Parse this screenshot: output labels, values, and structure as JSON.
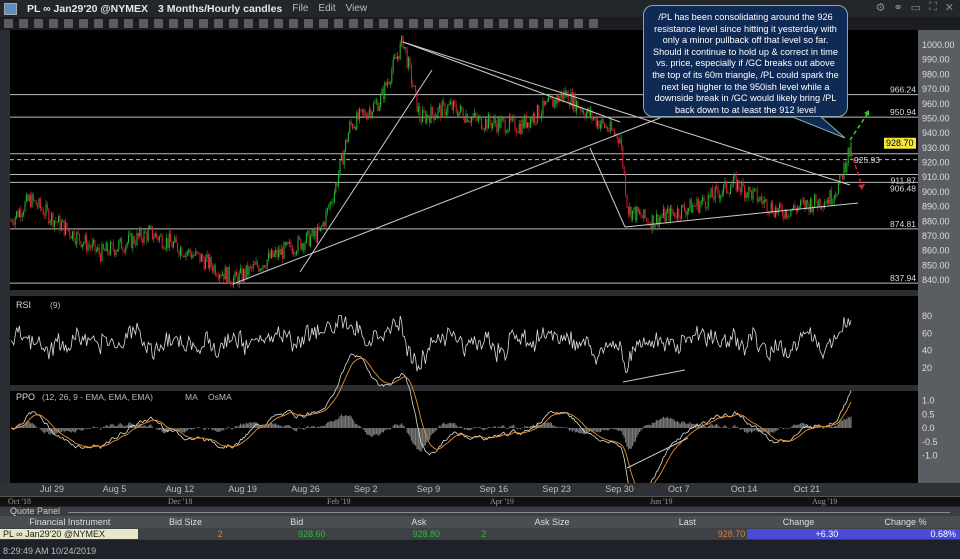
{
  "window": {
    "symbol": "PL ∞ Jan29'20 @NYMEX",
    "timeframe": "3 Months/Hourly candles",
    "menu": [
      "File",
      "Edit",
      "View"
    ]
  },
  "annotation": "/PL has been consolidating around the 926 resistance level since hitting it yesterday with only a minor pullback off that level so far. Should it continue to hold up & correct in time vs. price, especially if /GC breaks out above the top of its 60m triangle, /PL could spark the next leg higher to the 950ish level while a downside break in /GC would likely bring /PL back down to at least the 912 level",
  "price_axis": [
    "1000.00",
    "990.00",
    "980.00",
    "970.00",
    "960.00",
    "950.00",
    "940.00",
    "930.00",
    "920.00",
    "910.00",
    "900.00",
    "890.00",
    "880.00",
    "870.00",
    "860.00",
    "850.00",
    "840.00"
  ],
  "last_price": "928.70",
  "levels": [
    "966.24",
    "950.94",
    "925.93",
    "911.87",
    "906.48",
    "874.81",
    "837.94"
  ],
  "rsi": {
    "label": "RSI",
    "params": "(9)",
    "ticks": [
      "80",
      "60",
      "40",
      "20"
    ]
  },
  "ppo": {
    "label": "PPO",
    "params": "(12, 26, 9 - EMA, EMA, EMA)",
    "ma": "MA",
    "osma": "OsMA",
    "ticks": [
      "1.0",
      "0.5",
      "0.0",
      "-0.5",
      "-1.0"
    ]
  },
  "x_axis": [
    "Jul 29",
    "Aug 5",
    "Aug 12",
    "Aug 19",
    "Aug 26",
    "Sep 2",
    "Sep 9",
    "Sep 16",
    "Sep 23",
    "Sep 30",
    "Oct 7",
    "Oct 14",
    "Oct 21"
  ],
  "navigator": [
    "Oct '18",
    "Dec '18",
    "Feb '19",
    "Apr '19",
    "Jun '19",
    "Aug '19"
  ],
  "quote_panel": {
    "title": "Quote Panel",
    "headers": [
      "Financial Instrument",
      "Bid Size",
      "Bid",
      "Ask",
      "Ask Size",
      "Last",
      "Change",
      "Change %"
    ],
    "row": {
      "instrument": "PL ∞ Jan29'20 @NYMEX",
      "bid_size": "2",
      "bid": "928.60",
      "ask": "928.80",
      "ask_size": "2",
      "last": "928.70",
      "change": "+6.30",
      "change_pct": "0.68%"
    }
  },
  "status_time": "8:29:49 AM 10/24/2019",
  "colors": {
    "up": "#22c02a",
    "down": "#e0203a",
    "last_bg": "#f2e93a",
    "change_bg": "#4a4ad8",
    "bid": "#22c02a",
    "last": "#e08030"
  }
}
